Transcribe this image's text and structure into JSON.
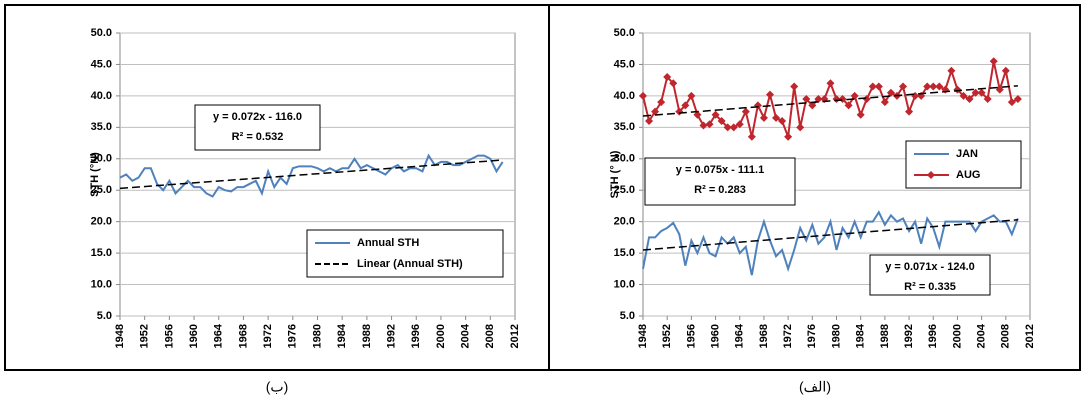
{
  "chart_data": [
    {
      "type": "line",
      "caption": "(ب)",
      "y_label": "STH (°N)",
      "x": [
        1948,
        1949,
        1950,
        1951,
        1952,
        1953,
        1954,
        1955,
        1956,
        1957,
        1958,
        1959,
        1960,
        1961,
        1962,
        1963,
        1964,
        1965,
        1966,
        1967,
        1968,
        1969,
        1970,
        1971,
        1972,
        1973,
        1974,
        1975,
        1976,
        1977,
        1978,
        1979,
        1980,
        1981,
        1982,
        1983,
        1984,
        1985,
        1986,
        1987,
        1988,
        1989,
        1990,
        1991,
        1992,
        1993,
        1994,
        1995,
        1996,
        1997,
        1998,
        1999,
        2000,
        2001,
        2002,
        2003,
        2004,
        2005,
        2006,
        2007,
        2008,
        2009,
        2010
      ],
      "xlim": [
        1948,
        2012
      ],
      "xticks": [
        1948,
        1952,
        1956,
        1960,
        1964,
        1968,
        1972,
        1976,
        1980,
        1984,
        1988,
        1992,
        1996,
        2000,
        2004,
        2008,
        2012
      ],
      "ylim": [
        5,
        50
      ],
      "yticks": [
        {
          "value": 5,
          "label": "5.0"
        },
        {
          "value": 10,
          "label": "10.0"
        },
        {
          "value": 15,
          "label": "15.0"
        },
        {
          "value": 20,
          "label": "20.0"
        },
        {
          "value": 25,
          "label": "25.0"
        },
        {
          "value": 30,
          "label": "30.0"
        },
        {
          "value": 35,
          "label": "35.0"
        },
        {
          "value": 40,
          "label": "40.0"
        },
        {
          "value": 45,
          "label": "45.0"
        },
        {
          "value": 50,
          "label": "50.0"
        }
      ],
      "grid": true,
      "series": [
        {
          "name": "Annual STH",
          "color": "#4f81bd",
          "marker": false,
          "values": [
            27,
            27.5,
            26.5,
            27,
            28.5,
            28.5,
            26,
            25,
            26.5,
            24.5,
            25.5,
            26.5,
            25.5,
            25.5,
            24.5,
            24,
            25.5,
            25,
            24.8,
            25.5,
            25.5,
            26,
            26.5,
            24.5,
            28,
            25.5,
            27,
            26,
            28.5,
            28.8,
            28.8,
            28.8,
            28.5,
            28,
            28.5,
            28,
            28.5,
            28.5,
            30,
            28.5,
            29,
            28.5,
            28,
            27.5,
            28.5,
            29,
            28,
            28.5,
            28.5,
            28,
            30.5,
            29,
            29.5,
            29.5,
            29,
            29,
            29.5,
            30,
            30.5,
            30.5,
            30,
            28,
            29.5
          ]
        }
      ],
      "trendlines": [
        {
          "name": "Linear (Annual STH)",
          "color": "#000000",
          "x": [
            1948,
            2010
          ],
          "y": [
            25.3,
            29.8
          ],
          "equation": [
            "y = 0.072x - 116.0",
            "R² = 0.532"
          ]
        }
      ]
    },
    {
      "type": "line",
      "caption": "(الف)",
      "y_label": "STH (° N)",
      "x": [
        1948,
        1949,
        1950,
        1951,
        1952,
        1953,
        1954,
        1955,
        1956,
        1957,
        1958,
        1959,
        1960,
        1961,
        1962,
        1963,
        1964,
        1965,
        1966,
        1967,
        1968,
        1969,
        1970,
        1971,
        1972,
        1973,
        1974,
        1975,
        1976,
        1977,
        1978,
        1979,
        1980,
        1981,
        1982,
        1983,
        1984,
        1985,
        1986,
        1987,
        1988,
        1989,
        1990,
        1991,
        1992,
        1993,
        1994,
        1995,
        1996,
        1997,
        1998,
        1999,
        2000,
        2001,
        2002,
        2003,
        2004,
        2005,
        2006,
        2007,
        2008,
        2009,
        2010
      ],
      "xlim": [
        1948,
        2012
      ],
      "xticks": [
        1948,
        1952,
        1956,
        1960,
        1964,
        1968,
        1972,
        1976,
        1980,
        1984,
        1988,
        1992,
        1996,
        2000,
        2004,
        2008,
        2012
      ],
      "ylim": [
        5,
        50
      ],
      "yticks": [
        {
          "value": 5,
          "label": "5.0"
        },
        {
          "value": 10,
          "label": "10.0"
        },
        {
          "value": 15,
          "label": "15.0"
        },
        {
          "value": 20,
          "label": "20.0"
        },
        {
          "value": 25,
          "label": "25.0"
        },
        {
          "value": 30,
          "label": "30.0"
        },
        {
          "value": 35,
          "label": "35.0"
        },
        {
          "value": 40,
          "label": "40.0"
        },
        {
          "value": 45,
          "label": "45.0"
        },
        {
          "value": 50,
          "label": "50.0"
        }
      ],
      "grid": true,
      "series": [
        {
          "name": "JAN",
          "color": "#4f81bd",
          "marker": false,
          "values": [
            12.5,
            17.5,
            17.5,
            18.5,
            19,
            19.8,
            18,
            13,
            17,
            15,
            17.5,
            15,
            14.5,
            17.5,
            16.5,
            17.5,
            15,
            16,
            11.5,
            17,
            20,
            17,
            14.5,
            15.5,
            12.5,
            15.5,
            19,
            17,
            19.5,
            16.5,
            17.5,
            20,
            15.5,
            19,
            17.5,
            20,
            17.5,
            20,
            20,
            21.5,
            19.5,
            21,
            20,
            20.5,
            18.5,
            20,
            16.5,
            20.5,
            19,
            16,
            20,
            20,
            20,
            20,
            20,
            18.5,
            20,
            20.5,
            21,
            20,
            20,
            18,
            20.5
          ]
        },
        {
          "name": "AUG",
          "color": "#c0262d",
          "marker": true,
          "values": [
            40,
            36,
            37.5,
            39,
            43,
            42,
            37.5,
            38.5,
            40,
            37,
            35.3,
            35.5,
            37,
            36,
            35,
            35,
            35.5,
            37.5,
            33.5,
            38.5,
            36.5,
            40.2,
            36.5,
            36,
            33.5,
            41.5,
            35,
            39.5,
            38.5,
            39.5,
            39.5,
            42,
            39.5,
            39.5,
            38.5,
            40,
            37,
            39.5,
            41.5,
            41.5,
            39,
            40.5,
            40,
            41.5,
            37.5,
            40,
            40,
            41.5,
            41.5,
            41.5,
            41,
            44,
            41,
            40,
            39.5,
            40.5,
            40.5,
            39.5,
            45.5,
            41,
            44,
            39,
            39.5
          ]
        }
      ],
      "trendlines": [
        {
          "color": "#000000",
          "x": [
            1948,
            2010
          ],
          "y": [
            36.8,
            41.6
          ],
          "equation": [
            "y = 0.075x - 111.1",
            "R² = 0.283"
          ]
        },
        {
          "color": "#000000",
          "x": [
            1948,
            2010
          ],
          "y": [
            15.5,
            20.3
          ],
          "equation": [
            "y = 0.071x - 124.0",
            "R² = 0.335"
          ]
        }
      ]
    }
  ]
}
